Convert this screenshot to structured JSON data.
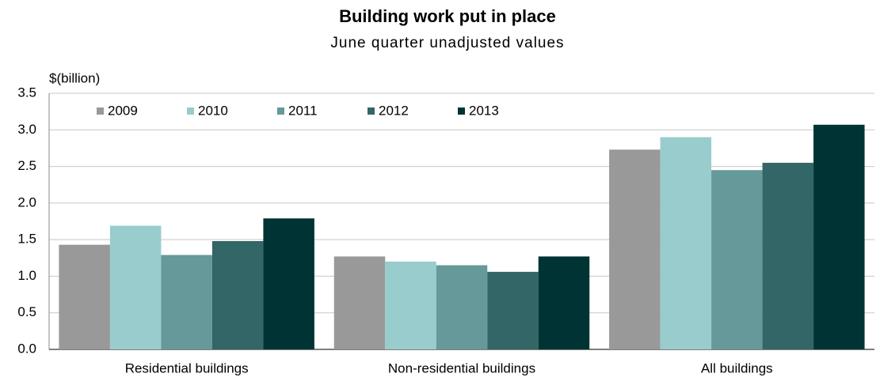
{
  "chart_data": {
    "type": "bar",
    "title": "Building work put in place",
    "subtitle": "June quarter unadjusted values",
    "y_label": "$(billion)",
    "categories": [
      "Residential buildings",
      "Non-residential buildings",
      "All buildings"
    ],
    "series": [
      {
        "name": "2009",
        "color": "#999999",
        "values": [
          1.43,
          1.27,
          2.73
        ]
      },
      {
        "name": "2010",
        "color": "#99cccc",
        "values": [
          1.69,
          1.2,
          2.9
        ]
      },
      {
        "name": "2011",
        "color": "#669999",
        "values": [
          1.29,
          1.15,
          2.45
        ]
      },
      {
        "name": "2012",
        "color": "#336666",
        "values": [
          1.48,
          1.06,
          2.55
        ]
      },
      {
        "name": "2013",
        "color": "#003333",
        "values": [
          1.79,
          1.27,
          3.07
        ]
      }
    ],
    "ylim": [
      0,
      3.5
    ],
    "yticks": [
      {
        "value": 0,
        "label": "0.0"
      },
      0.5,
      {
        "value": 1,
        "label": "1.0"
      },
      1.5,
      {
        "value": 2,
        "label": "2.0"
      },
      2.5,
      {
        "value": 3,
        "label": "3.0"
      },
      3.5
    ],
    "grid": true,
    "legend": "upper left"
  }
}
